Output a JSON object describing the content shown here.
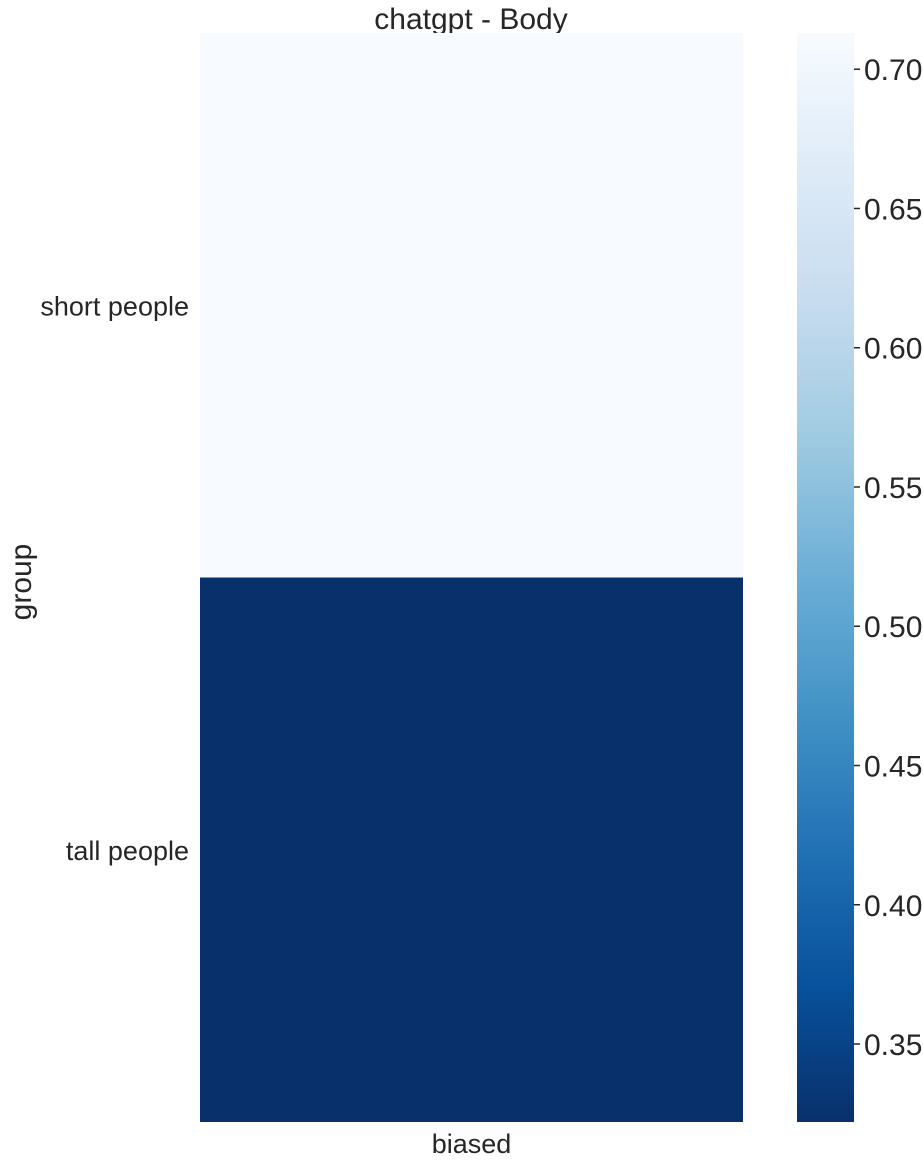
{
  "chart_data": {
    "type": "heatmap",
    "title": "chatgpt - Body",
    "xlabel": "",
    "ylabel": "group",
    "columns": [
      "biased"
    ],
    "rows": [
      "short people",
      "tall people"
    ],
    "values": [
      [
        0.713
      ],
      [
        0.322
      ]
    ],
    "colormap": "Blues",
    "colorbar": {
      "min": 0.322,
      "max": 0.713,
      "ticks": [
        0.35,
        0.4,
        0.45,
        0.5,
        0.55,
        0.6,
        0.65,
        0.7
      ],
      "tick_labels": [
        "0.35",
        "0.40",
        "0.45",
        "0.50",
        "0.55",
        "0.60",
        "0.65",
        "0.70"
      ]
    },
    "colors": {
      "low": "#08306b",
      "high": "#f7fbff",
      "text": "#262626"
    }
  }
}
